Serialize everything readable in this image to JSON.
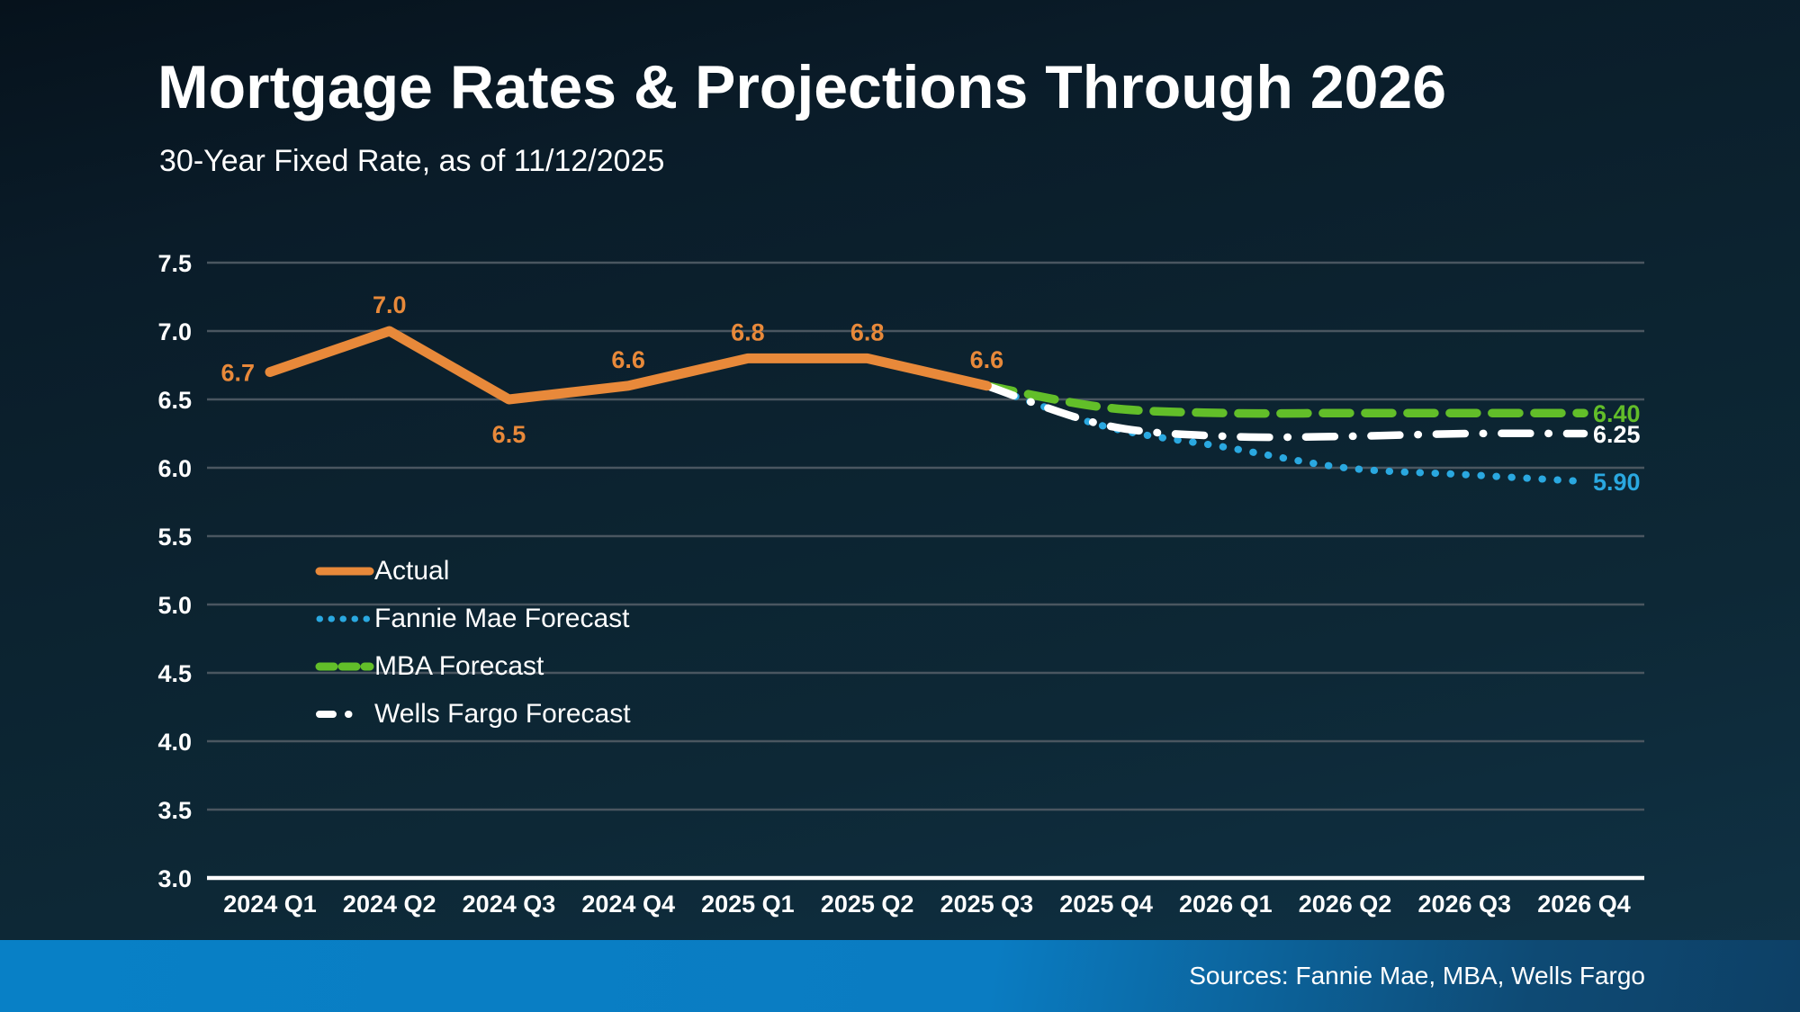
{
  "chart_data": {
    "type": "line",
    "title": "Mortgage Rates & Projections Through 2026",
    "subtitle": "30-Year Fixed Rate, as of 11/12/2025",
    "categories": [
      "2024 Q1",
      "2024 Q2",
      "2024 Q3",
      "2024 Q4",
      "2025 Q1",
      "2025 Q2",
      "2025 Q3",
      "2025 Q4",
      "2026 Q1",
      "2026 Q2",
      "2026 Q3",
      "2026 Q4"
    ],
    "ylim": [
      3.0,
      7.5
    ],
    "ytick_step": 0.5,
    "ytick_labels": [
      "7.5",
      "7.0",
      "6.5",
      "6.0",
      "5.5",
      "5.0",
      "4.5",
      "4.0",
      "3.5",
      "3.0"
    ],
    "grid": true,
    "legend_position": "inside-left",
    "series": [
      {
        "name": "Actual",
        "color": "#E8893A",
        "style": "solid",
        "x": [
          "2024 Q1",
          "2024 Q2",
          "2024 Q3",
          "2024 Q4",
          "2025 Q1",
          "2025 Q2",
          "2025 Q3"
        ],
        "values": [
          6.7,
          7.0,
          6.5,
          6.6,
          6.8,
          6.8,
          6.6
        ],
        "point_labels": [
          "6.7",
          "7.0",
          "6.5",
          "6.6",
          "6.8",
          "6.8",
          "6.6"
        ],
        "label_placement": [
          "left",
          "above",
          "below",
          "above",
          "above",
          "above",
          "above"
        ]
      },
      {
        "name": "Fannie Mae Forecast",
        "color": "#2AA8E0",
        "style": "dotted",
        "x": [
          "2025 Q3",
          "2025 Q4",
          "2026 Q1",
          "2026 Q2",
          "2026 Q3",
          "2026 Q4"
        ],
        "values": [
          6.6,
          6.3,
          6.15,
          6.0,
          5.95,
          5.9
        ],
        "end_label": "5.90"
      },
      {
        "name": "MBA Forecast",
        "color": "#62BE29",
        "style": "dashed",
        "x": [
          "2025 Q3",
          "2025 Q4",
          "2026 Q1",
          "2026 Q2",
          "2026 Q3",
          "2026 Q4"
        ],
        "values": [
          6.6,
          6.44,
          6.4,
          6.4,
          6.4,
          6.4
        ],
        "end_label": "6.40"
      },
      {
        "name": "Wells Fargo Forecast",
        "color": "#FFFFFF",
        "style": "dashdot",
        "x": [
          "2025 Q3",
          "2025 Q4",
          "2026 Q1",
          "2026 Q2",
          "2026 Q3",
          "2026 Q4"
        ],
        "values": [
          6.6,
          6.31,
          6.23,
          6.23,
          6.25,
          6.25
        ],
        "end_label": "6.25"
      }
    ],
    "colors": {
      "grid": "#4A5660",
      "axis": "#FFFFFF",
      "tick_text": "#FFFFFF",
      "footer_bar_left": "#0880C6",
      "footer_bar_right": "#0D4066"
    },
    "footer": {
      "sources": "Sources: Fannie Mae, MBA, Wells Fargo"
    }
  }
}
